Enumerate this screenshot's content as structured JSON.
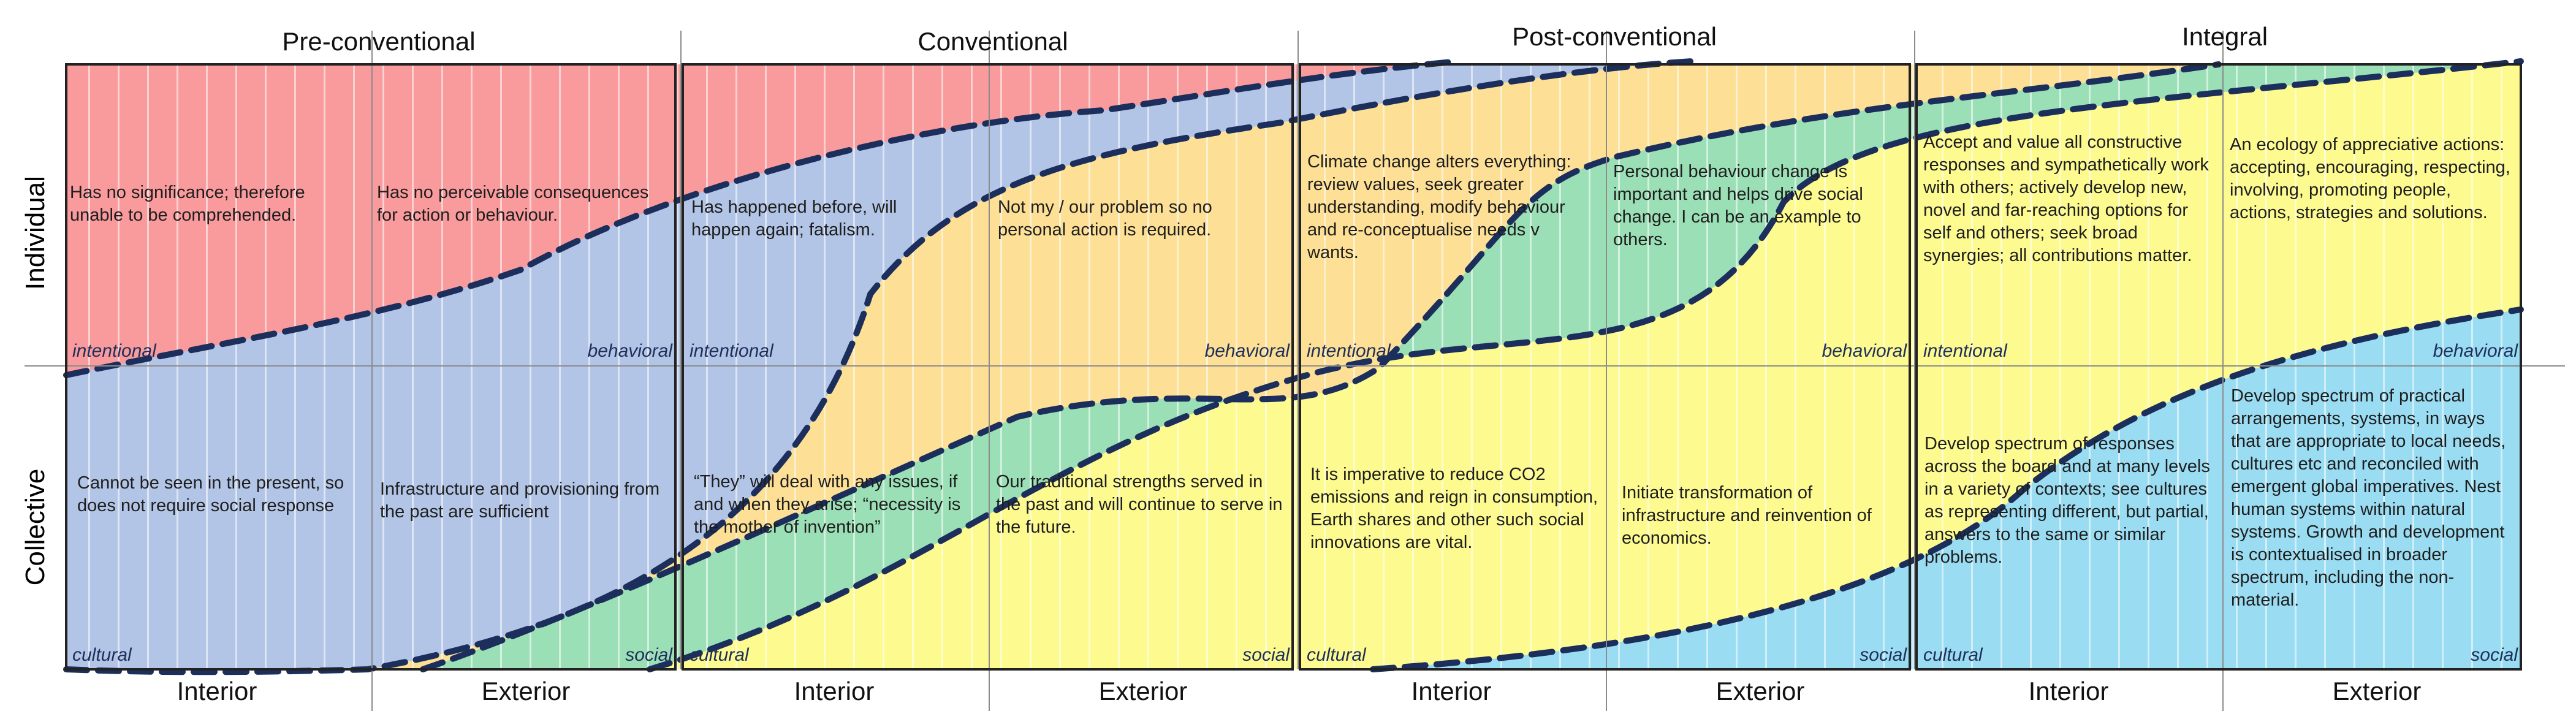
{
  "stages": [
    "Pre-conventional",
    "Conventional",
    "Post-conventional",
    "Integral"
  ],
  "rows": [
    "Individual",
    "Collective"
  ],
  "columns": [
    "Interior",
    "Exterior"
  ],
  "corner_labels": {
    "top_left": "intentional",
    "top_right": "behavioral",
    "bottom_left": "cultural",
    "bottom_right": "social"
  },
  "colors": {
    "red": "#f99a9c",
    "blue": "#b3c5e6",
    "orange": "#fde095",
    "green": "#9bdfb6",
    "yellow": "#fdfa8f",
    "cyan": "#9adcf2",
    "dashed_curve": "#1c2f5c"
  },
  "cells": [
    {
      "stage": "Pre-conventional",
      "individual_interior": "Has no significance; therefore unable to be comprehended.",
      "individual_exterior": "Has no perceivable consequences for action or behaviour.",
      "collective_interior": "Cannot be seen in the present, so does not require social response",
      "collective_exterior": "Infrastructure and provisioning from the past are sufficient"
    },
    {
      "stage": "Conventional",
      "individual_interior": "Has happened before, will happen again; fatalism.",
      "individual_exterior": "Not my / our problem so no personal action is required.",
      "collective_interior": "“They” will deal with any issues, if and when they arise; “necessity is the mother of invention”",
      "collective_exterior": "Our traditional strengths served in the past and will continue to serve in the future."
    },
    {
      "stage": "Post-conventional",
      "individual_interior": "Climate change alters everything: review values, seek greater understanding, modify behaviour and re-conceptualise needs v wants.",
      "individual_exterior": "Personal behaviour change is important and helps drive social change. I can be an example to others.",
      "collective_interior": "It is imperative to reduce CO2 emissions and reign in consumption, Earth shares and other such social innovations are vital.",
      "collective_exterior": "Initiate transformation of infrastructure and reinvention of economics."
    },
    {
      "stage": "Integral",
      "individual_interior": "Accept and value all constructive responses and sympathetically work with others; actively develop new, novel and far-reaching options for self and others; seek broad synergies; all contributions matter.",
      "individual_exterior": "An ecology of appreciative actions: accepting, encouraging, respecting, involving, promoting people, actions, strategies and solutions.",
      "collective_interior": "Develop spectrum of responses across the board and at many levels in a variety of contexts; see cultures as representing different, but partial, answers to the same or similar problems.",
      "collective_exterior": "Develop spectrum of practical arrangements, systems, in ways that are appropriate to local needs, cultures etc and reconciled with emergent global imperatives. Nest human systems within natural systems. Growth and development is contextualised in broader spectrum, including the non-material."
    }
  ]
}
